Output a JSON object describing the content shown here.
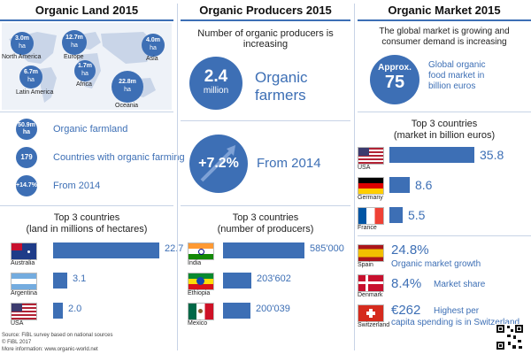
{
  "land": {
    "title": "Organic Land 2015",
    "regions": [
      {
        "name": "North America",
        "value": "3.0m",
        "unit": "ha"
      },
      {
        "name": "Europe",
        "value": "12.7m",
        "unit": "ha"
      },
      {
        "name": "Asia",
        "value": "4.0m",
        "unit": "ha"
      },
      {
        "name": "Latin America",
        "value": "6.7m",
        "unit": "ha"
      },
      {
        "name": "Africa",
        "value": "1.7m",
        "unit": "ha"
      },
      {
        "name": "Oceania",
        "value": "22.8m",
        "unit": "ha"
      }
    ],
    "stats": [
      {
        "badge": "50.9m",
        "badge2": "ha",
        "label": "Organic farmland"
      },
      {
        "badge": "179",
        "badge2": "",
        "label": "Countries with organic farming"
      },
      {
        "badge": "+14.7%",
        "badge2": "",
        "label": "From 2014"
      }
    ],
    "top_title_1": "Top 3 countries",
    "top_title_2": "(land in millions of hectares)",
    "source_1": "Source: FiBL survey based on national sources",
    "source_2": "© FiBL 2017",
    "source_3": "More information: www.organic-world.net"
  },
  "producers": {
    "title": "Organic Producers 2015",
    "subtitle": "Number of organic producers is increasing",
    "farmers_value": "2.4",
    "farmers_unit": "million",
    "farmers_label_1": "Organic",
    "farmers_label_2": "farmers",
    "growth_value": "+7.2%",
    "growth_label": "From 2014",
    "top_title_1": "Top 3 countries",
    "top_title_2": "(number of producers)"
  },
  "market": {
    "title": "Organic Market 2015",
    "subtitle_1": "The global market is growing and",
    "subtitle_2": "consumer demand is increasing",
    "approx_label": "Approx.",
    "approx_value": "75",
    "approx_text_1": "Global organic",
    "approx_text_2": "food market in",
    "approx_text_3": "billion euros",
    "top_title_1": "Top 3 countries",
    "top_title_2": "(market in billion euros)",
    "extra": [
      {
        "country": "Spain",
        "value": "24.8%",
        "text": "Organic market growth"
      },
      {
        "country": "Denmark",
        "value": "8.4%",
        "text": "Market share"
      },
      {
        "country": "Switzerland",
        "value": "€262",
        "text": "Highest per",
        "text2": "capita spending is in Switzerland"
      }
    ]
  },
  "colors": {
    "accent": "#3d6fb5",
    "light": "#c7d3e6"
  },
  "chart_data": [
    {
      "type": "bar",
      "title": "Top 3 countries",
      "subtitle": "(land in millions of hectares)",
      "categories": [
        "Australia",
        "Argentina",
        "USA"
      ],
      "values": [
        22.7,
        3.1,
        2.0
      ],
      "labels": [
        "22.7",
        "3.1",
        "2.0"
      ],
      "xlim": [
        0,
        22.7
      ]
    },
    {
      "type": "bar",
      "title": "Top 3 countries",
      "subtitle": "(number of producers)",
      "categories": [
        "India",
        "Ethiopia",
        "Mexico"
      ],
      "values": [
        585000,
        203602,
        200039
      ],
      "labels": [
        "585'000",
        "203'602",
        "200'039"
      ],
      "xlim": [
        0,
        585000
      ]
    },
    {
      "type": "bar",
      "title": "Top 3 countries",
      "subtitle": "(market in billion euros)",
      "categories": [
        "USA",
        "Germany",
        "France"
      ],
      "values": [
        35.8,
        8.6,
        5.5
      ],
      "labels": [
        "35.8",
        "8.6",
        "5.5"
      ],
      "xlim": [
        0,
        35.8
      ]
    }
  ]
}
